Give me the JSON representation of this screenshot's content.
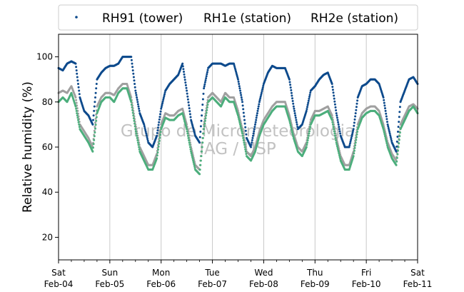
{
  "chart_data": {
    "type": "scatter",
    "title": "",
    "xlabel": "",
    "ylabel": "Relative humidity (%)",
    "ylim": [
      10,
      110
    ],
    "xlim": [
      "2024-02-04",
      "2024-02-11"
    ],
    "yticks": [
      20,
      40,
      60,
      80,
      100
    ],
    "x_ticks": [
      {
        "date": "2024-02-04",
        "line1": "Sat",
        "line2": "Feb-04"
      },
      {
        "date": "2024-02-05",
        "line1": "Sun",
        "line2": "Feb-05"
      },
      {
        "date": "2024-02-06",
        "line1": "Mon",
        "line2": "Feb-06"
      },
      {
        "date": "2024-02-07",
        "line1": "Tue",
        "line2": "Feb-07"
      },
      {
        "date": "2024-02-08",
        "line1": "Wed",
        "line2": "Feb-08"
      },
      {
        "date": "2024-02-09",
        "line1": "Thu",
        "line2": "Feb-09"
      },
      {
        "date": "2024-02-10",
        "line1": "Fri",
        "line2": "Feb-10"
      },
      {
        "date": "2024-02-11",
        "line1": "Sat",
        "line2": "Feb-11"
      }
    ],
    "grid": "vertical",
    "legend": "top",
    "watermark": [
      "Grupo de Micrometeorologia",
      "IAG / USP"
    ],
    "series": [
      {
        "name": "RH91 (tower)",
        "color": "#0d4a8c",
        "x": [
          "2024-02-04 00:00",
          "2024-02-04 02:00",
          "2024-02-04 04:00",
          "2024-02-04 06:00",
          "2024-02-04 08:00",
          "2024-02-04 10:00",
          "2024-02-04 12:00",
          "2024-02-04 14:00",
          "2024-02-04 16:00",
          "2024-02-04 18:00",
          "2024-02-04 20:00",
          "2024-02-04 22:00",
          "2024-02-05 00:00",
          "2024-02-05 02:00",
          "2024-02-05 04:00",
          "2024-02-05 06:00",
          "2024-02-05 08:00",
          "2024-02-05 10:00",
          "2024-02-05 12:00",
          "2024-02-05 14:00",
          "2024-02-05 16:00",
          "2024-02-05 18:00",
          "2024-02-05 20:00",
          "2024-02-05 22:00",
          "2024-02-06 00:00",
          "2024-02-06 02:00",
          "2024-02-06 04:00",
          "2024-02-06 06:00",
          "2024-02-06 08:00",
          "2024-02-06 10:00",
          "2024-02-06 12:00",
          "2024-02-06 14:00",
          "2024-02-06 16:00",
          "2024-02-06 18:00",
          "2024-02-06 20:00",
          "2024-02-06 22:00",
          "2024-02-07 00:00",
          "2024-02-07 02:00",
          "2024-02-07 04:00",
          "2024-02-07 06:00",
          "2024-02-07 08:00",
          "2024-02-07 10:00",
          "2024-02-07 12:00",
          "2024-02-07 14:00",
          "2024-02-07 16:00",
          "2024-02-07 18:00",
          "2024-02-07 20:00",
          "2024-02-07 22:00",
          "2024-02-08 00:00",
          "2024-02-08 02:00",
          "2024-02-08 04:00",
          "2024-02-08 06:00",
          "2024-02-08 08:00",
          "2024-02-08 10:00",
          "2024-02-08 12:00",
          "2024-02-08 14:00",
          "2024-02-08 16:00",
          "2024-02-08 18:00",
          "2024-02-08 20:00",
          "2024-02-08 22:00",
          "2024-02-09 00:00",
          "2024-02-09 02:00",
          "2024-02-09 04:00",
          "2024-02-09 06:00",
          "2024-02-09 08:00",
          "2024-02-09 10:00",
          "2024-02-09 12:00",
          "2024-02-09 14:00",
          "2024-02-09 16:00",
          "2024-02-09 18:00",
          "2024-02-09 20:00",
          "2024-02-09 22:00",
          "2024-02-10 00:00",
          "2024-02-10 02:00",
          "2024-02-10 04:00",
          "2024-02-10 06:00",
          "2024-02-10 08:00",
          "2024-02-10 10:00",
          "2024-02-10 12:00",
          "2024-02-10 14:00",
          "2024-02-10 16:00",
          "2024-02-10 18:00",
          "2024-02-10 20:00",
          "2024-02-10 22:00",
          "2024-02-11 00:00"
        ],
        "y": [
          95,
          94,
          97,
          98,
          97,
          82,
          76,
          74,
          70,
          90,
          93,
          95,
          96,
          96,
          97,
          100,
          100,
          100,
          85,
          75,
          70,
          62,
          60,
          65,
          77,
          85,
          88,
          90,
          92,
          97,
          85,
          72,
          65,
          62,
          86,
          95,
          97,
          97,
          97,
          96,
          97,
          97,
          90,
          80,
          64,
          60,
          70,
          80,
          88,
          93,
          96,
          95,
          95,
          95,
          90,
          78,
          68,
          70,
          76,
          85,
          87,
          90,
          92,
          93,
          88,
          75,
          65,
          60,
          60,
          68,
          82,
          87,
          88,
          90,
          90,
          88,
          82,
          70,
          62,
          58,
          80,
          85,
          90,
          91,
          88
        ]
      },
      {
        "name": "RH1e (station)",
        "color": "#4cae7c",
        "x": [
          "2024-02-04 00:00",
          "2024-02-04 02:00",
          "2024-02-04 04:00",
          "2024-02-04 06:00",
          "2024-02-04 08:00",
          "2024-02-04 10:00",
          "2024-02-04 12:00",
          "2024-02-04 14:00",
          "2024-02-04 16:00",
          "2024-02-04 18:00",
          "2024-02-04 20:00",
          "2024-02-04 22:00",
          "2024-02-05 00:00",
          "2024-02-05 02:00",
          "2024-02-05 04:00",
          "2024-02-05 06:00",
          "2024-02-05 08:00",
          "2024-02-05 10:00",
          "2024-02-05 12:00",
          "2024-02-05 14:00",
          "2024-02-05 16:00",
          "2024-02-05 18:00",
          "2024-02-05 20:00",
          "2024-02-05 22:00",
          "2024-02-06 00:00",
          "2024-02-06 02:00",
          "2024-02-06 04:00",
          "2024-02-06 06:00",
          "2024-02-06 08:00",
          "2024-02-06 10:00",
          "2024-02-06 12:00",
          "2024-02-06 14:00",
          "2024-02-06 16:00",
          "2024-02-06 18:00",
          "2024-02-06 20:00",
          "2024-02-06 22:00",
          "2024-02-07 00:00",
          "2024-02-07 02:00",
          "2024-02-07 04:00",
          "2024-02-07 06:00",
          "2024-02-07 08:00",
          "2024-02-07 10:00",
          "2024-02-07 12:00",
          "2024-02-07 14:00",
          "2024-02-07 16:00",
          "2024-02-07 18:00",
          "2024-02-07 20:00",
          "2024-02-07 22:00",
          "2024-02-08 00:00",
          "2024-02-08 02:00",
          "2024-02-08 04:00",
          "2024-02-08 06:00",
          "2024-02-08 08:00",
          "2024-02-08 10:00",
          "2024-02-08 12:00",
          "2024-02-08 14:00",
          "2024-02-08 16:00",
          "2024-02-08 18:00",
          "2024-02-08 20:00",
          "2024-02-08 22:00",
          "2024-02-09 00:00",
          "2024-02-09 02:00",
          "2024-02-09 04:00",
          "2024-02-09 06:00",
          "2024-02-09 08:00",
          "2024-02-09 10:00",
          "2024-02-09 12:00",
          "2024-02-09 14:00",
          "2024-02-09 16:00",
          "2024-02-09 18:00",
          "2024-02-09 20:00",
          "2024-02-09 22:00",
          "2024-02-10 00:00",
          "2024-02-10 02:00",
          "2024-02-10 04:00",
          "2024-02-10 06:00",
          "2024-02-10 08:00",
          "2024-02-10 10:00",
          "2024-02-10 12:00",
          "2024-02-10 14:00",
          "2024-02-10 16:00",
          "2024-02-10 18:00",
          "2024-02-10 20:00",
          "2024-02-10 22:00",
          "2024-02-11 00:00"
        ],
        "y": [
          80,
          82,
          80,
          84,
          78,
          68,
          65,
          62,
          58,
          75,
          80,
          82,
          82,
          80,
          84,
          86,
          86,
          80,
          68,
          58,
          54,
          50,
          50,
          55,
          68,
          73,
          72,
          72,
          74,
          75,
          68,
          58,
          50,
          48,
          68,
          80,
          82,
          80,
          78,
          82,
          80,
          80,
          74,
          66,
          56,
          54,
          58,
          65,
          70,
          73,
          76,
          78,
          78,
          78,
          72,
          64,
          58,
          56,
          60,
          70,
          74,
          74,
          75,
          76,
          72,
          62,
          54,
          50,
          50,
          56,
          68,
          73,
          75,
          76,
          76,
          74,
          68,
          60,
          55,
          52,
          68,
          72,
          76,
          78,
          75
        ]
      },
      {
        "name": "RH2e (station)",
        "color": "#a0a0a0",
        "x": [
          "2024-02-04 00:00",
          "2024-02-04 02:00",
          "2024-02-04 04:00",
          "2024-02-04 06:00",
          "2024-02-04 08:00",
          "2024-02-04 10:00",
          "2024-02-04 12:00",
          "2024-02-04 14:00",
          "2024-02-04 16:00",
          "2024-02-04 18:00",
          "2024-02-04 20:00",
          "2024-02-04 22:00",
          "2024-02-05 00:00",
          "2024-02-05 02:00",
          "2024-02-05 04:00",
          "2024-02-05 06:00",
          "2024-02-05 08:00",
          "2024-02-05 10:00",
          "2024-02-05 12:00",
          "2024-02-05 14:00",
          "2024-02-05 16:00",
          "2024-02-05 18:00",
          "2024-02-05 20:00",
          "2024-02-05 22:00",
          "2024-02-06 00:00",
          "2024-02-06 02:00",
          "2024-02-06 04:00",
          "2024-02-06 06:00",
          "2024-02-06 08:00",
          "2024-02-06 10:00",
          "2024-02-06 12:00",
          "2024-02-06 14:00",
          "2024-02-06 16:00",
          "2024-02-06 18:00",
          "2024-02-06 20:00",
          "2024-02-06 22:00",
          "2024-02-07 00:00",
          "2024-02-07 02:00",
          "2024-02-07 04:00",
          "2024-02-07 06:00",
          "2024-02-07 08:00",
          "2024-02-07 10:00",
          "2024-02-07 12:00",
          "2024-02-07 14:00",
          "2024-02-07 16:00",
          "2024-02-07 18:00",
          "2024-02-07 20:00",
          "2024-02-07 22:00",
          "2024-02-08 00:00",
          "2024-02-08 02:00",
          "2024-02-08 04:00",
          "2024-02-08 06:00",
          "2024-02-08 08:00",
          "2024-02-08 10:00",
          "2024-02-08 12:00",
          "2024-02-08 14:00",
          "2024-02-08 16:00",
          "2024-02-08 18:00",
          "2024-02-08 20:00",
          "2024-02-08 22:00",
          "2024-02-09 00:00",
          "2024-02-09 02:00",
          "2024-02-09 04:00",
          "2024-02-09 06:00",
          "2024-02-09 08:00",
          "2024-02-09 10:00",
          "2024-02-09 12:00",
          "2024-02-09 14:00",
          "2024-02-09 16:00",
          "2024-02-09 18:00",
          "2024-02-09 20:00",
          "2024-02-09 22:00",
          "2024-02-10 00:00",
          "2024-02-10 02:00",
          "2024-02-10 04:00",
          "2024-02-10 06:00",
          "2024-02-10 08:00",
          "2024-02-10 10:00",
          "2024-02-10 12:00",
          "2024-02-10 14:00",
          "2024-02-10 16:00",
          "2024-02-10 18:00",
          "2024-02-10 20:00",
          "2024-02-10 22:00",
          "2024-02-11 00:00"
        ],
        "y": [
          84,
          85,
          84,
          87,
          82,
          70,
          67,
          64,
          60,
          78,
          82,
          84,
          84,
          83,
          86,
          88,
          88,
          82,
          70,
          60,
          56,
          52,
          52,
          57,
          70,
          75,
          74,
          74,
          76,
          77,
          70,
          60,
          52,
          50,
          70,
          82,
          84,
          82,
          80,
          84,
          82,
          82,
          76,
          68,
          58,
          56,
          60,
          67,
          72,
          75,
          78,
          80,
          80,
          80,
          74,
          66,
          60,
          58,
          62,
          72,
          76,
          76,
          77,
          78,
          74,
          64,
          56,
          52,
          52,
          58,
          70,
          75,
          77,
          78,
          78,
          76,
          70,
          62,
          57,
          54,
          70,
          74,
          78,
          79,
          77
        ]
      }
    ]
  }
}
